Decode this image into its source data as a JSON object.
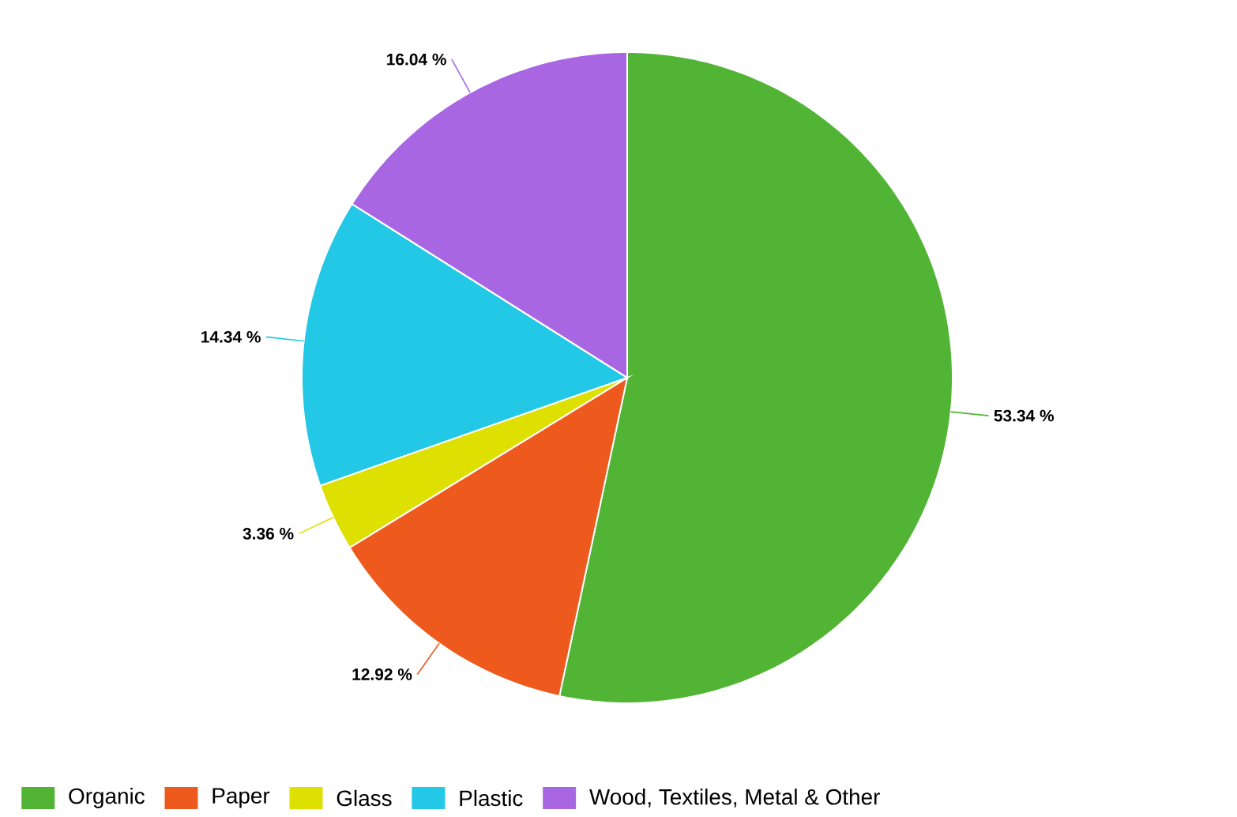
{
  "chart_data": {
    "type": "pie",
    "categories": [
      "Organic",
      "Paper",
      "Glass",
      "Plastic",
      "Wood, Textiles, Metal & Other"
    ],
    "values": [
      53.34,
      12.92,
      3.36,
      14.34,
      16.04
    ],
    "colors": [
      "#52b435",
      "#ee5a1e",
      "#dde000",
      "#22c8e5",
      "#a966e3"
    ],
    "value_labels": [
      "53.34 %",
      "12.92 %",
      "3.36 %",
      "14.34 %",
      "16.04 %"
    ],
    "legend": "bottom"
  }
}
